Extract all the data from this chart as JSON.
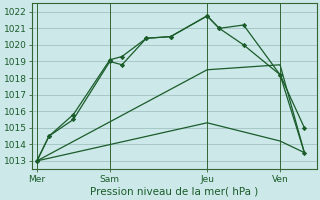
{
  "background_color": "#cce8e8",
  "grid_color_major": "#99bbbb",
  "grid_color_minor": "#bbdddd",
  "line_color": "#1a5c2a",
  "spine_color": "#336633",
  "title": "Pression niveau de la mer( hPa )",
  "x_ticks_labels": [
    "Mer",
    "Sam",
    "Jeu",
    "Ven"
  ],
  "x_ticks_pos": [
    0,
    3,
    7,
    10
  ],
  "xlim": [
    -0.2,
    11.5
  ],
  "ylim": [
    1012.5,
    1022.5
  ],
  "yticks": [
    1013,
    1014,
    1015,
    1016,
    1017,
    1018,
    1019,
    1020,
    1021,
    1022
  ],
  "series": [
    {
      "x": [
        0,
        0.5,
        1.5,
        3,
        3.5,
        4.5,
        5.5,
        7,
        7.5,
        8.5,
        10,
        11
      ],
      "y": [
        1013.0,
        1014.5,
        1015.5,
        1019.0,
        1018.8,
        1020.4,
        1020.5,
        1021.75,
        1021.0,
        1020.0,
        1018.2,
        1015.0
      ],
      "markers": true
    },
    {
      "x": [
        0,
        0.5,
        1.5,
        3,
        3.5,
        4.5,
        5.5,
        7,
        7.5,
        8.5,
        10,
        11
      ],
      "y": [
        1013.0,
        1014.5,
        1015.8,
        1019.1,
        1019.3,
        1020.4,
        1020.5,
        1021.75,
        1021.0,
        1021.2,
        1018.2,
        1013.5
      ],
      "markers": true
    },
    {
      "x": [
        0,
        7,
        10,
        11
      ],
      "y": [
        1013.0,
        1018.5,
        1018.8,
        1013.5
      ],
      "markers": false
    },
    {
      "x": [
        0,
        7,
        10,
        11
      ],
      "y": [
        1013.0,
        1015.3,
        1014.2,
        1013.5
      ],
      "markers": false
    }
  ]
}
